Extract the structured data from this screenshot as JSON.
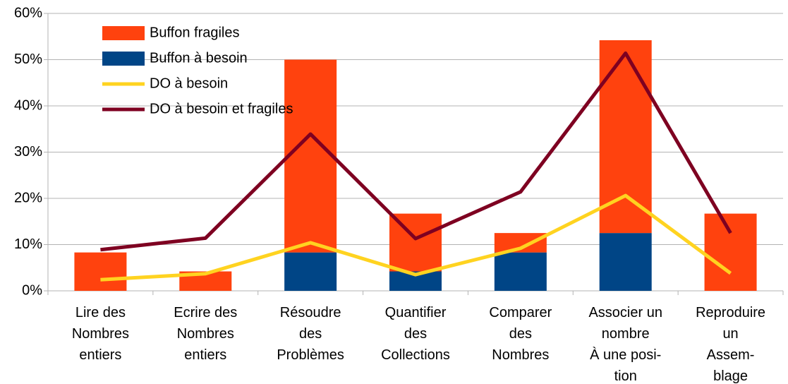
{
  "chart_data": {
    "type": "bar",
    "categories": [
      [
        "Lire des",
        "Nombres",
        "entiers"
      ],
      [
        "Ecrire des",
        "Nombres",
        "entiers"
      ],
      [
        "Résoudre",
        "des",
        "Problèmes"
      ],
      [
        "Quantifier",
        "des",
        "Collections"
      ],
      [
        "Comparer",
        "des",
        "Nombres"
      ],
      [
        "Associer un",
        "nombre",
        "À une posi-",
        "tion"
      ],
      [
        "Reproduire",
        "un",
        "Assem-",
        "blage"
      ]
    ],
    "series": [
      {
        "name": "Buffon fragiles",
        "type": "bar",
        "color": "#ff420e",
        "values": [
          8.3,
          4.2,
          41.7,
          12.5,
          4.2,
          41.7,
          16.7
        ]
      },
      {
        "name": "Buffon à besoin",
        "type": "bar",
        "color": "#004586",
        "values": [
          0,
          0,
          8.3,
          4.2,
          8.3,
          12.5,
          0
        ]
      },
      {
        "name": "DO à besoin",
        "type": "line",
        "color": "#ffd320",
        "values": [
          2.4,
          3.7,
          10.4,
          3.5,
          9.2,
          20.6,
          3.8
        ]
      },
      {
        "name": "DO à besoin et fragiles",
        "type": "line",
        "color": "#7e0021",
        "values": [
          8.9,
          11.4,
          33.9,
          11.3,
          21.4,
          51.4,
          12.5
        ]
      }
    ],
    "stacked": true,
    "ylim": [
      0,
      60
    ],
    "yticks": [
      {
        "value": 0,
        "label": "0%"
      },
      {
        "value": 10,
        "label": "10%"
      },
      {
        "value": 20,
        "label": "20%"
      },
      {
        "value": 30,
        "label": "30%"
      },
      {
        "value": 40,
        "label": "40%"
      },
      {
        "value": 50,
        "label": "50%"
      },
      {
        "value": 60,
        "label": "60%"
      }
    ],
    "grid": true,
    "legend": "upper left"
  }
}
